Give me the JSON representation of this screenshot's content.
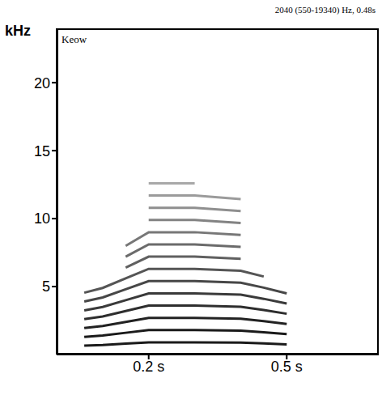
{
  "chart_data": {
    "type": "line",
    "title": "2040 (550-19340) Hz, 0.48s",
    "y_label": "kHz",
    "annotation": "Keow",
    "x": [
      0.06,
      0.1,
      0.15,
      0.2,
      0.3,
      0.4,
      0.45,
      0.5
    ],
    "xlim": [
      0,
      0.7
    ],
    "xticks": [
      {
        "value": 0.2,
        "label": "0.2 s"
      },
      {
        "value": 0.5,
        "label": "0.5 s"
      }
    ],
    "ylim": [
      0,
      24
    ],
    "yticks": [
      5,
      10,
      15,
      20
    ],
    "grid": false,
    "series": [
      {
        "color": "#1a1a1a",
        "values": [
          0.65,
          0.7,
          0.8,
          0.9,
          0.9,
          0.88,
          0.82,
          0.75
        ]
      },
      {
        "color": "#1a1a1a",
        "values": [
          1.3,
          1.4,
          1.6,
          1.8,
          1.8,
          1.76,
          1.64,
          1.5
        ]
      },
      {
        "color": "#222222",
        "values": [
          1.95,
          2.1,
          2.4,
          2.7,
          2.7,
          2.64,
          2.46,
          2.25
        ]
      },
      {
        "color": "#2e2e2e",
        "values": [
          2.6,
          2.8,
          3.2,
          3.6,
          3.6,
          3.52,
          3.28,
          3.0
        ]
      },
      {
        "color": "#3a3a3a",
        "values": [
          3.25,
          3.5,
          4.0,
          4.5,
          4.5,
          4.4,
          4.1,
          3.75
        ]
      },
      {
        "color": "#474747",
        "values": [
          3.9,
          4.2,
          4.8,
          5.4,
          5.4,
          5.28,
          4.92,
          4.5
        ]
      },
      {
        "color": "#555555",
        "values": [
          4.55,
          4.9,
          5.6,
          6.3,
          6.3,
          6.16,
          5.74,
          null
        ]
      },
      {
        "color": "#606060",
        "values": [
          null,
          null,
          6.4,
          7.2,
          7.2,
          7.04,
          null,
          null
        ]
      },
      {
        "color": "#6b6b6b",
        "values": [
          null,
          null,
          7.2,
          8.1,
          8.1,
          7.92,
          null,
          null
        ]
      },
      {
        "color": "#777777",
        "values": [
          null,
          null,
          8.0,
          9.0,
          9.0,
          8.8,
          null,
          null
        ]
      },
      {
        "color": "#838383",
        "values": [
          null,
          null,
          null,
          9.9,
          9.9,
          9.68,
          null,
          null
        ]
      },
      {
        "color": "#8f8f8f",
        "values": [
          null,
          null,
          null,
          10.8,
          10.8,
          10.56,
          null,
          null
        ]
      },
      {
        "color": "#9b9b9b",
        "values": [
          null,
          null,
          null,
          11.7,
          11.7,
          11.44,
          null,
          null
        ]
      },
      {
        "color": "#a8a8a8",
        "values": [
          null,
          null,
          null,
          12.6,
          12.6,
          null,
          null,
          null
        ]
      }
    ]
  }
}
